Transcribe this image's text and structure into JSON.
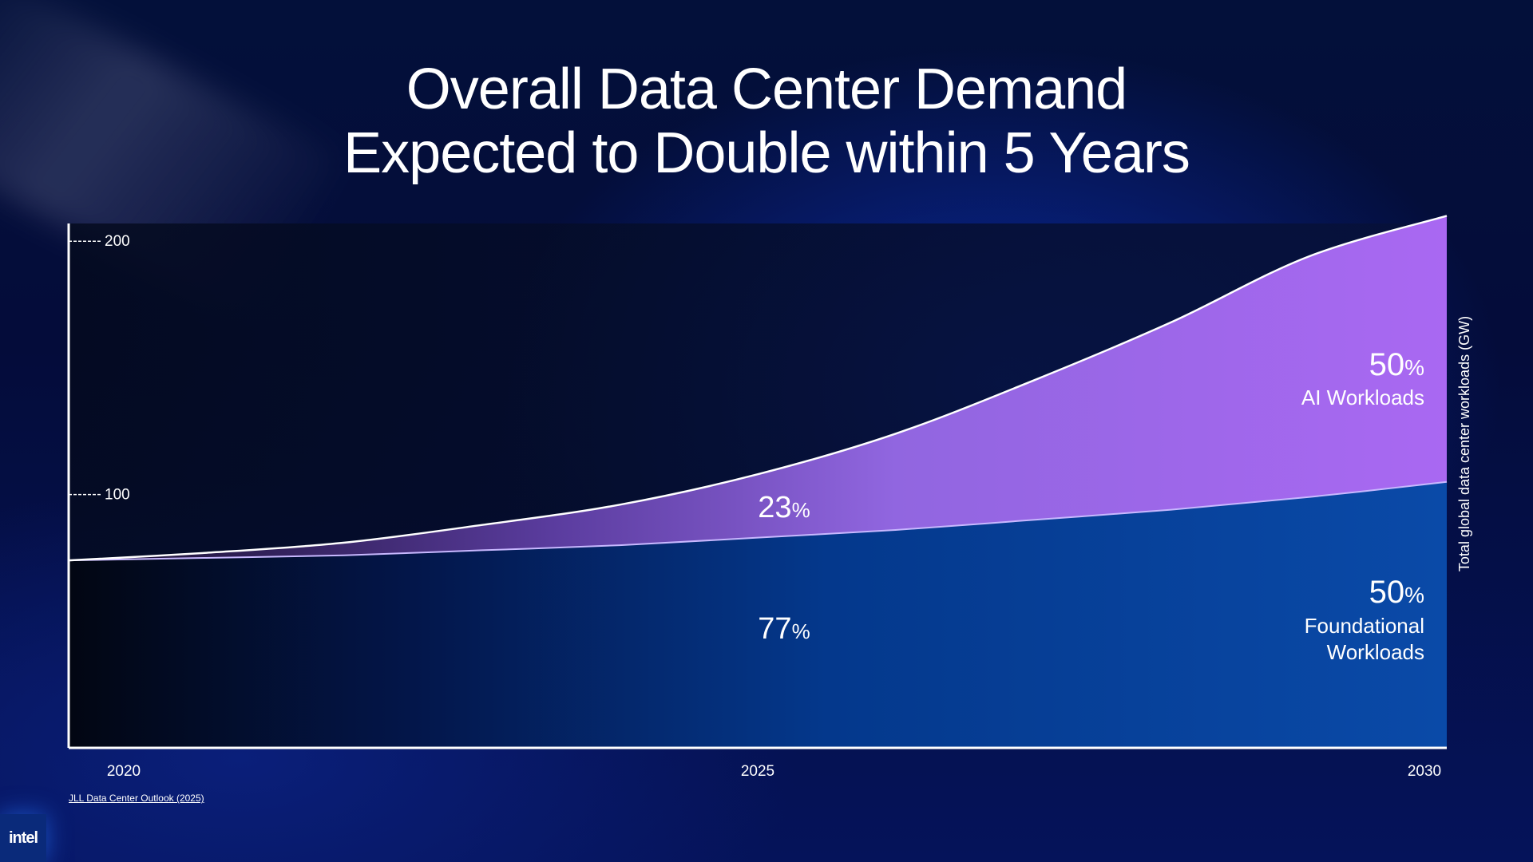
{
  "slide": {
    "title_line1": "Overall Data Center Demand",
    "title_line2": "Expected to Double within 5 Years",
    "source": "JLL Data Center Outlook (2025)",
    "logo_text": "intel"
  },
  "chart_data": {
    "type": "area",
    "stacked": true,
    "x": [
      2020,
      2021,
      2022,
      2023,
      2024,
      2025,
      2026,
      2027,
      2028,
      2029,
      2030
    ],
    "series": [
      {
        "key": "foundational",
        "values": [
          74,
          75,
          76,
          78,
          80,
          83,
          86,
          90,
          94,
          99,
          105
        ],
        "color": "#0a4aa8"
      },
      {
        "key": "ai",
        "values": [
          0,
          2,
          5,
          10,
          16,
          25,
          38,
          55,
          74,
          95,
          105
        ],
        "color": "#a666ee"
      }
    ],
    "ylim": [
      0,
      207
    ],
    "yticks": [
      100,
      200
    ],
    "xtick_labels": [
      "2020",
      "2025",
      "2030"
    ],
    "ylabel": "Total global data center workloads (GW)",
    "annotations": {
      "ai_2025_pct": "23",
      "foundational_2025_pct": "77",
      "ai_2030_pct": "50",
      "ai_2030_label": "AI Workloads",
      "foundational_2030_pct": "50",
      "foundational_2030_label_line1": "Foundational",
      "foundational_2030_label_line2": "Workloads",
      "pct_sign": "%"
    }
  }
}
